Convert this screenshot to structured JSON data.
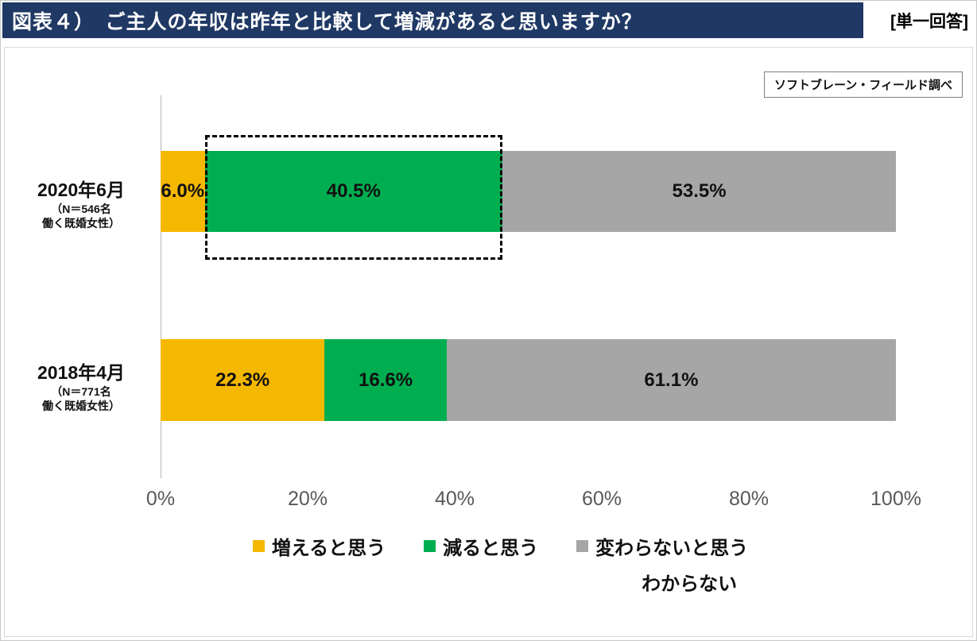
{
  "header": {
    "title": "図表４）　ご主人の年収は昨年と比較して増減があると思いますか？",
    "answer_type": "[単一回答]"
  },
  "source_note": "ソフトブレーン・フィールド調べ",
  "chart_data": {
    "type": "bar",
    "orientation": "horizontal",
    "stacked": true,
    "xlim": [
      0,
      100
    ],
    "grid": false,
    "x_ticks": [
      "0%",
      "20%",
      "40%",
      "60%",
      "80%",
      "100%"
    ],
    "categories": [
      {
        "label": "2020年6月",
        "note_line1": "（N＝546名",
        "note_line2": "働く既婚女性）"
      },
      {
        "label": "2018年4月",
        "note_line1": "（N＝771名",
        "note_line2": "働く既婚女性）"
      }
    ],
    "series": [
      {
        "name": "増えると思う",
        "color": "#F5B800",
        "values": [
          6.0,
          22.3
        ]
      },
      {
        "name": "減ると思う",
        "color": "#00AE50",
        "values": [
          40.5,
          16.6
        ]
      },
      {
        "name": "変わらないと思う・わからない",
        "color": "#A6A6A6",
        "values": [
          53.5,
          61.1
        ]
      }
    ],
    "value_labels": [
      [
        "6.0%",
        "40.5%",
        "53.5%"
      ],
      [
        "22.3%",
        "16.6%",
        "61.1%"
      ]
    ],
    "legend": [
      {
        "label": "増えると思う",
        "color": "#F5B800"
      },
      {
        "label": "減ると思う",
        "color": "#00AE50"
      },
      {
        "label": "変わらないと思う",
        "label_line2": "わからない",
        "color": "#A6A6A6"
      }
    ],
    "annotation": {
      "type": "dashed-rectangle",
      "target": "2020年6月の「減ると思う」40.5%セグメント"
    }
  }
}
